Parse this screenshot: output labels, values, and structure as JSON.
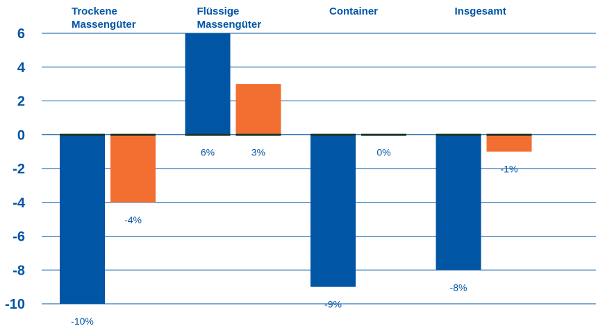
{
  "chart_data": {
    "type": "bar",
    "title": "",
    "xlabel": "",
    "ylabel": "",
    "ylim": [
      -10,
      6
    ],
    "yticks": [
      6,
      4,
      2,
      0,
      -2,
      -4,
      -6,
      -8,
      -10
    ],
    "grid": true,
    "legend": "none",
    "categories": [
      [
        "Trockene",
        "Massengüter"
      ],
      [
        "Flüssige",
        "Massengüter"
      ],
      [
        "Container"
      ],
      [
        "Insgesamt"
      ]
    ],
    "series": [
      {
        "color": "#0055a5",
        "values": [
          -10,
          6,
          -9,
          -8
        ],
        "labels": [
          "-10%",
          "6%",
          "-9%",
          "-8%"
        ]
      },
      {
        "color": "#f26f31",
        "values": [
          -4,
          3,
          0,
          -1
        ],
        "labels": [
          "-4%",
          "3%",
          "0%",
          "-1%"
        ]
      }
    ],
    "colors": {
      "grid": "#0055a5",
      "zero_line": "#1e3a28",
      "text": "#0055a5"
    }
  }
}
